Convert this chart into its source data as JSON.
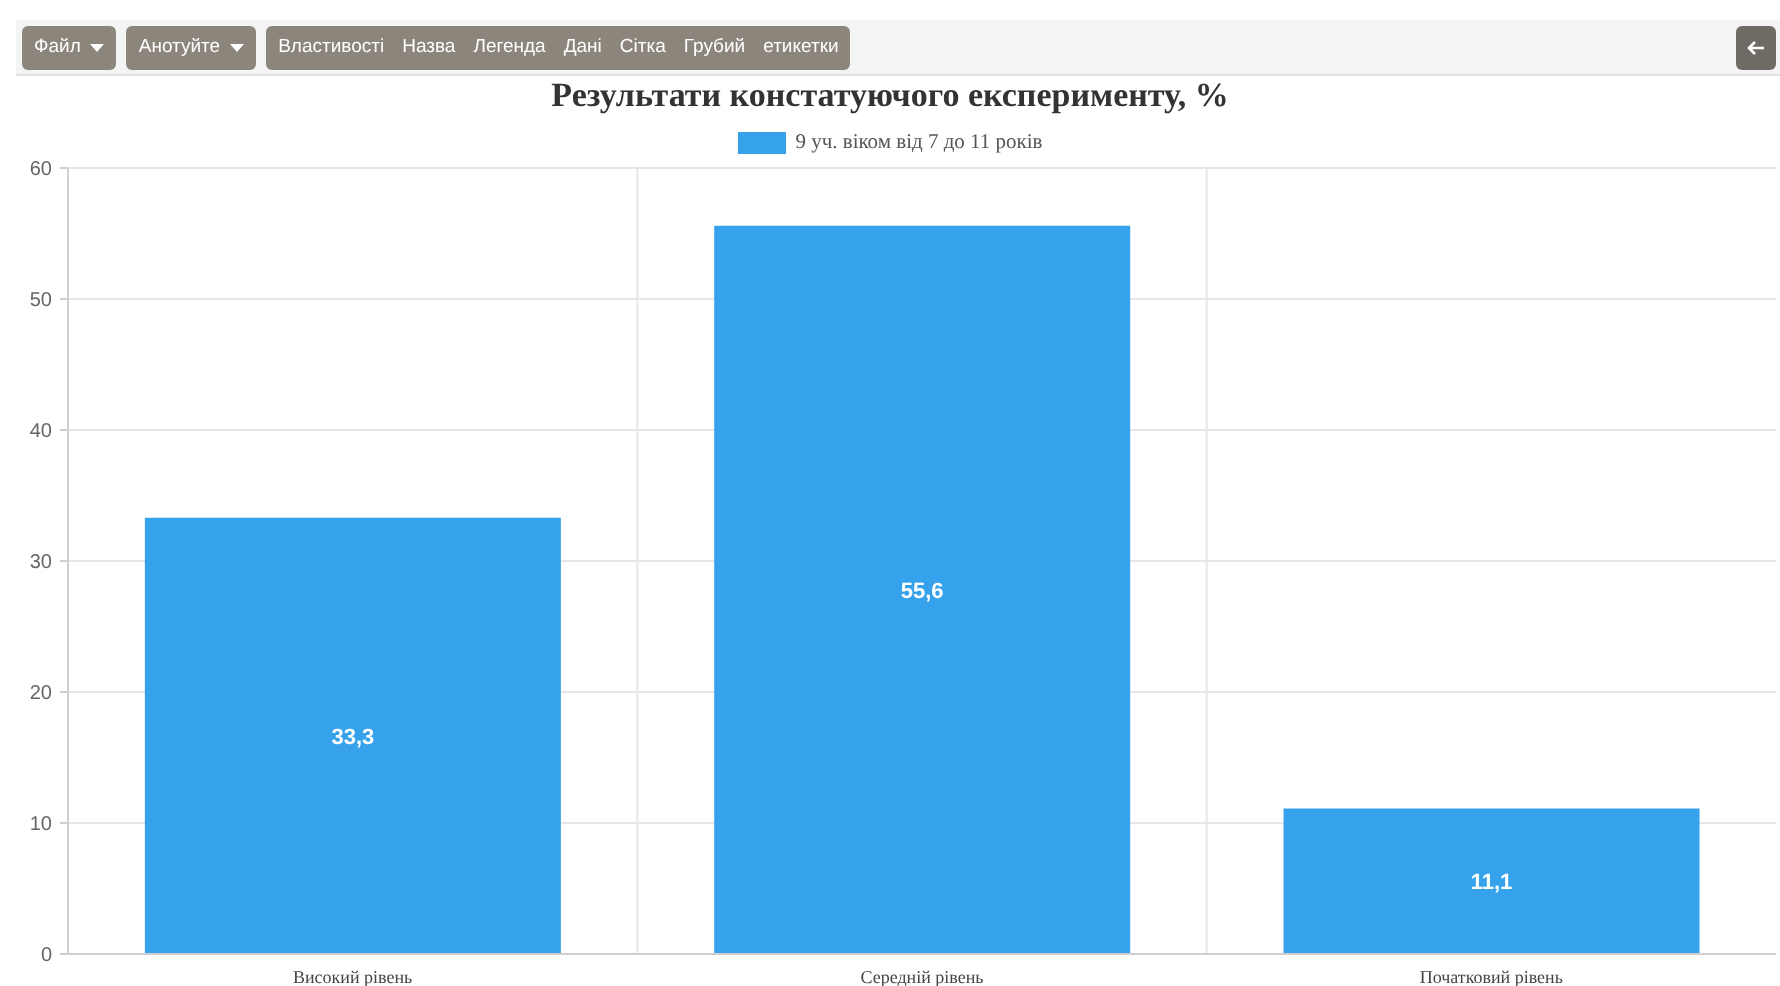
{
  "chart_data": {
    "type": "bar",
    "title": "Результати констатуючого експерименту, %",
    "annotations": [
      "Файл",
      "Анотуйте",
      "Властивості",
      "Назва",
      "Легенда",
      "Дані",
      "Сітка",
      "Грубий",
      "етикетки"
    ],
    "categories": [
      "Високий рівень",
      "Середній рівень",
      "Початковий рівень"
    ],
    "series": [
      {
        "name": "9 уч. віком від 7 до 11 років",
        "color": "#36a2eb",
        "values": [
          33.3,
          55.6,
          11.1
        ],
        "value_labels": [
          "33,3",
          "55,6",
          "11,1"
        ]
      }
    ],
    "ylim": [
      0,
      60
    ],
    "yticks": [
      0,
      10,
      20,
      30,
      40,
      50,
      60
    ],
    "grid": true,
    "legend": "top"
  }
}
